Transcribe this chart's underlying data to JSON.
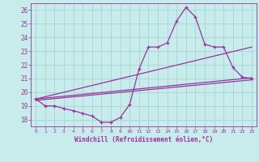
{
  "xlabel": "Windchill (Refroidissement éolien,°C)",
  "bg_color": "#c8ecec",
  "grid_color": "#a8d8d8",
  "line_color": "#993399",
  "xlim": [
    -0.5,
    23.5
  ],
  "ylim": [
    17.5,
    26.5
  ],
  "xticks": [
    0,
    1,
    2,
    3,
    4,
    5,
    6,
    7,
    8,
    9,
    10,
    11,
    12,
    13,
    14,
    15,
    16,
    17,
    18,
    19,
    20,
    21,
    22,
    23
  ],
  "yticks": [
    18,
    19,
    20,
    21,
    22,
    23,
    24,
    25,
    26
  ],
  "main_x": [
    0,
    1,
    2,
    3,
    4,
    5,
    6,
    7,
    8,
    9,
    10,
    11,
    12,
    13,
    14,
    15,
    16,
    17,
    18,
    19,
    20,
    21,
    22,
    23
  ],
  "main_y": [
    19.5,
    19.0,
    19.0,
    18.8,
    18.65,
    18.45,
    18.25,
    17.8,
    17.8,
    18.15,
    19.1,
    21.7,
    23.3,
    23.3,
    23.6,
    25.2,
    26.2,
    25.5,
    23.5,
    23.3,
    23.3,
    21.8,
    21.1,
    21.0
  ],
  "line1_x": [
    0,
    23
  ],
  "line1_y": [
    19.5,
    21.05
  ],
  "line2_x": [
    0,
    23
  ],
  "line2_y": [
    19.5,
    23.3
  ],
  "line3_x": [
    0,
    23
  ],
  "line3_y": [
    19.4,
    20.9
  ]
}
